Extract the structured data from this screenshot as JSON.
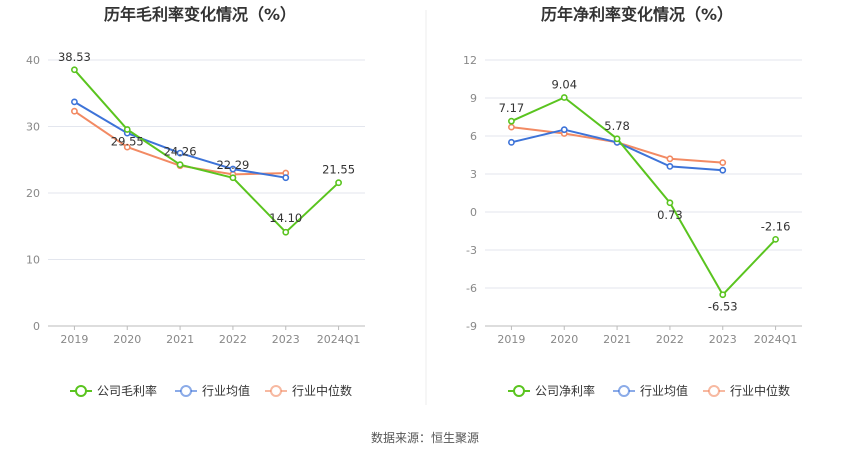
{
  "source_label": "数据来源：恒生聚源",
  "chart_data": [
    {
      "type": "line",
      "title": "历年毛利率变化情况（%）",
      "categories": [
        "2019",
        "2020",
        "2021",
        "2022",
        "2023",
        "2024Q1"
      ],
      "yticks": [
        0,
        10,
        20,
        30,
        40
      ],
      "ylim": [
        0,
        40
      ],
      "grid": true,
      "legend_position": "bottom",
      "series": [
        {
          "name": "公司毛利率",
          "color": "#5ac41f",
          "values": [
            38.53,
            29.55,
            24.26,
            22.29,
            14.1,
            21.55
          ],
          "labels": [
            "38.53",
            "29.55",
            "24.26",
            "22.29",
            "14.10",
            "21.55"
          ]
        },
        {
          "name": "行业均值",
          "color": "#3d73d8",
          "values": [
            33.7,
            29.0,
            26.0,
            23.6,
            22.3,
            null
          ]
        },
        {
          "name": "行业中位数",
          "color": "#f28a63",
          "values": [
            32.3,
            26.9,
            24.1,
            22.8,
            23.0,
            null
          ]
        }
      ]
    },
    {
      "type": "line",
      "title": "历年净利率变化情况（%）",
      "categories": [
        "2019",
        "2020",
        "2021",
        "2022",
        "2023",
        "2024Q1"
      ],
      "yticks": [
        -9,
        -6,
        -3,
        0,
        3,
        6,
        9,
        12
      ],
      "ylim": [
        -9,
        12
      ],
      "grid": true,
      "legend_position": "bottom",
      "series": [
        {
          "name": "公司净利率",
          "color": "#5ac41f",
          "values": [
            7.17,
            9.04,
            5.78,
            0.73,
            -6.53,
            -2.16
          ],
          "labels": [
            "7.17",
            "9.04",
            "5.78",
            "0.73",
            "-6.53",
            "-2.16"
          ]
        },
        {
          "name": "行业均值",
          "color": "#3d73d8",
          "values": [
            5.5,
            6.5,
            5.5,
            3.6,
            3.3,
            null
          ]
        },
        {
          "name": "行业中位数",
          "color": "#f28a63",
          "values": [
            6.7,
            6.2,
            5.5,
            4.2,
            3.9,
            null
          ]
        }
      ]
    }
  ]
}
